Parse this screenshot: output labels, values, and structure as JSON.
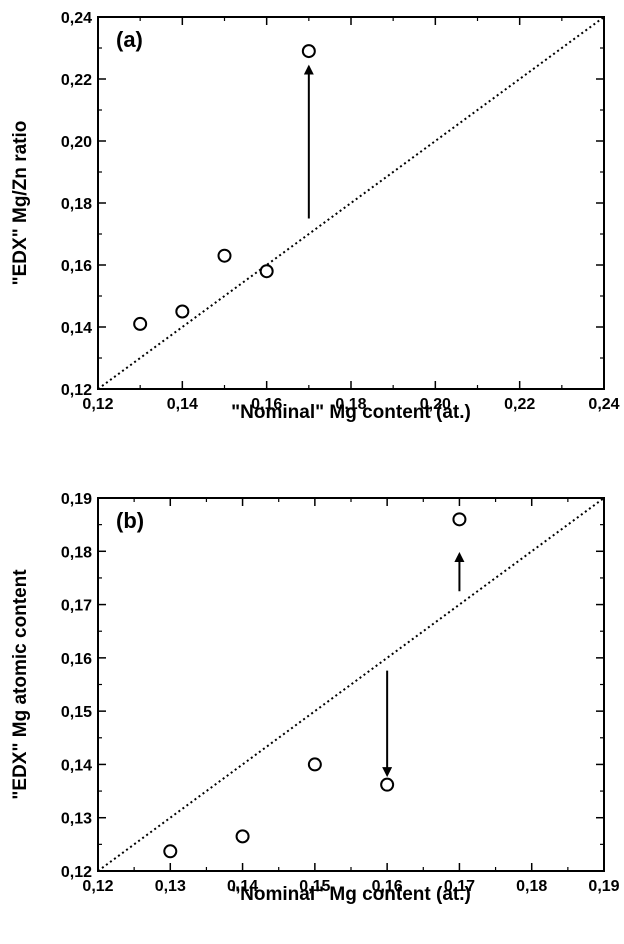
{
  "chart_data": [
    {
      "type": "scatter",
      "panel_label": "(a)",
      "xlabel": "\"Nominal\" Mg content (at.)",
      "ylabel": "\"EDX\" Mg/Zn ratio",
      "xlim": [
        0.12,
        0.24
      ],
      "ylim": [
        0.12,
        0.24
      ],
      "xticks": [
        "0,12",
        "0,14",
        "0,16",
        "0,18",
        "0,20",
        "0,22",
        "0,24"
      ],
      "yticks": [
        "0,12",
        "0,14",
        "0,16",
        "0,18",
        "0,20",
        "0,22",
        "0,24"
      ],
      "series": [
        {
          "marker": "open-circle",
          "x": [
            0.13,
            0.14,
            0.15,
            0.16,
            0.17
          ],
          "y": [
            0.141,
            0.145,
            0.163,
            0.158,
            0.229
          ]
        }
      ],
      "reference_line": {
        "style": "dotted",
        "from": [
          0.12,
          0.12
        ],
        "to": [
          0.24,
          0.24
        ]
      },
      "annotations": [
        {
          "type": "arrow",
          "from": [
            0.17,
            0.175
          ],
          "to": [
            0.17,
            0.224
          ]
        }
      ],
      "grid": false
    },
    {
      "type": "scatter",
      "panel_label": "(b)",
      "xlabel": "\"Nominal\" Mg content (at.)",
      "ylabel": "\"EDX\" Mg atomic content",
      "xlim": [
        0.12,
        0.19
      ],
      "ylim": [
        0.12,
        0.19
      ],
      "xticks": [
        "0,12",
        "0,13",
        "0,14",
        "0,15",
        "0,16",
        "0,17",
        "0,18",
        "0,19"
      ],
      "yticks": [
        "0,12",
        "0,13",
        "0,14",
        "0,15",
        "0,16",
        "0,17",
        "0,18",
        "0,19"
      ],
      "series": [
        {
          "marker": "open-circle",
          "x": [
            0.13,
            0.14,
            0.15,
            0.16,
            0.17
          ],
          "y": [
            0.1237,
            0.1265,
            0.14,
            0.1362,
            0.186
          ]
        }
      ],
      "reference_line": {
        "style": "dotted",
        "from": [
          0.12,
          0.12
        ],
        "to": [
          0.19,
          0.19
        ]
      },
      "annotations": [
        {
          "type": "arrow",
          "from": [
            0.17,
            0.1725
          ],
          "to": [
            0.17,
            0.1795
          ]
        },
        {
          "type": "arrow",
          "from": [
            0.16,
            0.1576
          ],
          "to": [
            0.16,
            0.138
          ]
        }
      ],
      "grid": false
    }
  ]
}
